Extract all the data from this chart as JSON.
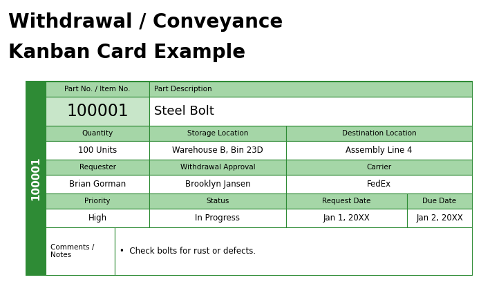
{
  "title_line1": "Withdrawal / Conveyance",
  "title_line2": "Kanban Card Example",
  "title_fontsize": 20,
  "green_dark": "#2E8B35",
  "green_light": "#C8E6C9",
  "green_header": "#A5D6A7",
  "white": "#FFFFFF",
  "border_color": "#2E8B35",
  "side_label": "100001",
  "part_no_label": "Part No. / Item No.",
  "part_no_value": "100001",
  "part_desc_label": "Part Description",
  "part_desc_value": "Steel Bolt",
  "qty_label": "Quantity",
  "qty_value": "100 Units",
  "storage_label": "Storage Location",
  "storage_value": "Warehouse B, Bin 23D",
  "dest_label": "Destination Location",
  "dest_value": "Assembly Line 4",
  "req_label": "Requester",
  "req_value": "Brian Gorman",
  "approval_label": "Withdrawal Approval",
  "approval_value": "Brooklyn Jansen",
  "carrier_label": "Carrier",
  "carrier_value": "FedEx",
  "priority_label": "Priority",
  "priority_value": "High",
  "status_label": "Status",
  "status_value": "In Progress",
  "req_date_label": "Request Date",
  "req_date_value": "Jan 1, 20XX",
  "due_date_label": "Due Date",
  "due_date_value": "Jan 2, 20XX",
  "comments_label": "Comments /\nNotes",
  "comments_value": "•  Check bolts for rust or defects.",
  "fig_w": 6.96,
  "fig_h": 4.24,
  "dpi": 100
}
